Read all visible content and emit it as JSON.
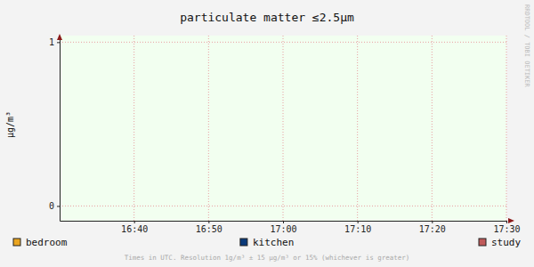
{
  "chart_data": {
    "type": "line",
    "title": "particulate matter ≤2.5µm",
    "y_label": "µg/m³",
    "side_text": "RRDTOOL / TOBI OETIKER",
    "footer": "Times in UTC. Resolution 1g/m³ ± 15 µg/m³ or 15% (whichever is greater)",
    "x": [],
    "xlim": [
      "16:30",
      "17:30"
    ],
    "xticks": [
      "16:40",
      "16:50",
      "17:00",
      "17:10",
      "17:20",
      "17:30"
    ],
    "ylim": [
      -0.09,
      1.04
    ],
    "yticks": [
      0,
      1
    ],
    "grid": true,
    "legend": "bottom",
    "series": [
      {
        "name": "bedroom",
        "color": "#eaa520",
        "values": []
      },
      {
        "name": "kitchen",
        "color": "#0a3a7a",
        "values": []
      },
      {
        "name": "study",
        "color": "#c05a5a",
        "values": []
      }
    ]
  }
}
